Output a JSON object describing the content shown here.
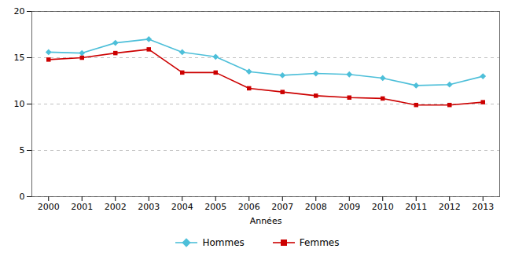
{
  "chart_data": {
    "type": "line",
    "x": [
      2000,
      2001,
      2002,
      2003,
      2004,
      2005,
      2006,
      2007,
      2008,
      2009,
      2010,
      2011,
      2012,
      2013
    ],
    "series": [
      {
        "name": "Hommes",
        "color": "#4DBFD9",
        "marker": "diamond",
        "values": [
          15.6,
          15.5,
          16.6,
          17.0,
          15.6,
          15.1,
          13.5,
          13.1,
          13.3,
          13.2,
          12.8,
          12.0,
          12.1,
          13.0
        ]
      },
      {
        "name": "Femmes",
        "color": "#CC0000",
        "marker": "square",
        "values": [
          14.8,
          15.0,
          15.5,
          15.9,
          13.4,
          13.4,
          11.7,
          11.3,
          10.9,
          10.7,
          10.6,
          9.9,
          9.9,
          10.2
        ]
      }
    ],
    "xlabel": "Années",
    "xlim": [
      1999.5,
      2013.5
    ],
    "xticks": [
      2000,
      2001,
      2002,
      2003,
      2004,
      2005,
      2006,
      2007,
      2008,
      2009,
      2010,
      2011,
      2012,
      2013
    ],
    "ylim": [
      0,
      20
    ],
    "yticks": [
      0,
      5,
      10,
      15,
      20
    ],
    "grid": true,
    "legend": "bottom"
  }
}
